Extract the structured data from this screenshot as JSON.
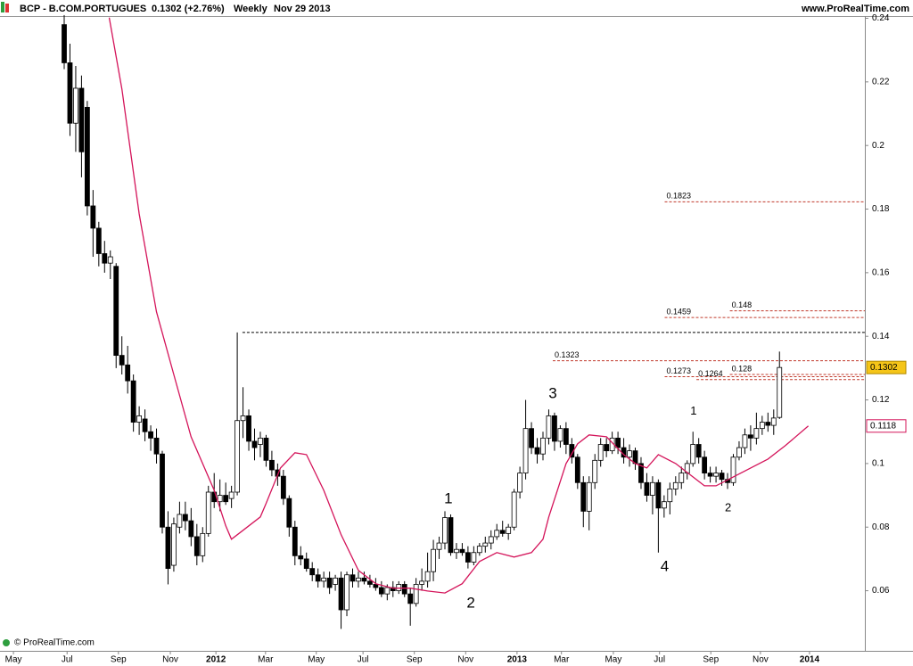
{
  "chart_data": {
    "type": "candlestick",
    "header": {
      "symbol": "BCP - B.COM.PORTUGUES",
      "quote": "0.1302 (+2.76%)",
      "period": "Weekly",
      "date": "Nov 29 2013",
      "site": "www.ProRealTime.com"
    },
    "footer": "© ProRealTime.com",
    "ylim": [
      0.0411,
      0.2407
    ],
    "yticks": [
      0.24,
      0.22,
      0.2,
      0.18,
      0.16,
      0.14,
      0.12,
      0.1,
      0.08,
      0.06
    ],
    "xlim": [
      -11.13,
      138.8
    ],
    "xticks": [
      {
        "value": -8.8,
        "label": "May"
      },
      {
        "value": 0.5,
        "label": "Jul"
      },
      {
        "value": 9.4,
        "label": "Sep"
      },
      {
        "value": 18.4,
        "label": "Nov"
      },
      {
        "value": 26.3,
        "label": "2012"
      },
      {
        "value": 34.9,
        "label": "Mar"
      },
      {
        "value": 43.7,
        "label": "May"
      },
      {
        "value": 51.8,
        "label": "Jul"
      },
      {
        "value": 60.7,
        "label": "Sep"
      },
      {
        "value": 69.6,
        "label": "Nov"
      },
      {
        "value": 78.5,
        "label": "2013"
      },
      {
        "value": 86.2,
        "label": "Mar"
      },
      {
        "value": 95.2,
        "label": "May"
      },
      {
        "value": 103.2,
        "label": "Jul"
      },
      {
        "value": 112.1,
        "label": "Sep"
      },
      {
        "value": 120.7,
        "label": "Nov"
      },
      {
        "value": 129.2,
        "label": "2014"
      }
    ],
    "up_color": "#ffffff",
    "down_color": "#000000",
    "ohlc": [
      [
        0.238,
        0.241,
        0.224,
        0.226
      ],
      [
        0.226,
        0.232,
        0.203,
        0.207
      ],
      [
        0.207,
        0.225,
        0.198,
        0.218
      ],
      [
        0.218,
        0.222,
        0.19,
        0.198
      ],
      [
        0.212,
        0.214,
        0.178,
        0.181
      ],
      [
        0.181,
        0.186,
        0.165,
        0.174
      ],
      [
        0.174,
        0.176,
        0.162,
        0.166
      ],
      [
        0.166,
        0.17,
        0.16,
        0.163
      ],
      [
        0.163,
        0.167,
        0.158,
        0.165
      ],
      [
        0.162,
        0.163,
        0.13,
        0.134
      ],
      [
        0.134,
        0.14,
        0.128,
        0.131
      ],
      [
        0.131,
        0.137,
        0.122,
        0.126
      ],
      [
        0.126,
        0.128,
        0.11,
        0.113
      ],
      [
        0.113,
        0.118,
        0.109,
        0.115
      ],
      [
        0.114,
        0.117,
        0.107,
        0.11
      ],
      [
        0.11,
        0.112,
        0.104,
        0.108
      ],
      [
        0.108,
        0.111,
        0.1,
        0.103
      ],
      [
        0.103,
        0.104,
        0.078,
        0.08
      ],
      [
        0.08,
        0.085,
        0.062,
        0.067
      ],
      [
        0.068,
        0.083,
        0.066,
        0.081
      ],
      [
        0.08,
        0.088,
        0.078,
        0.084
      ],
      [
        0.084,
        0.088,
        0.079,
        0.082
      ],
      [
        0.082,
        0.086,
        0.074,
        0.077
      ],
      [
        0.077,
        0.081,
        0.068,
        0.071
      ],
      [
        0.071,
        0.08,
        0.069,
        0.078
      ],
      [
        0.078,
        0.093,
        0.077,
        0.091
      ],
      [
        0.091,
        0.097,
        0.086,
        0.088
      ],
      [
        0.088,
        0.095,
        0.085,
        0.09
      ],
      [
        0.09,
        0.094,
        0.087,
        0.088
      ],
      [
        0.089,
        0.093,
        0.086,
        0.091
      ],
      [
        0.091,
        0.1412,
        0.09,
        0.1135
      ],
      [
        0.1135,
        0.124,
        0.108,
        0.115
      ],
      [
        0.115,
        0.117,
        0.104,
        0.107
      ],
      [
        0.107,
        0.111,
        0.101,
        0.105
      ],
      [
        0.106,
        0.11,
        0.102,
        0.108
      ],
      [
        0.108,
        0.109,
        0.099,
        0.101
      ],
      [
        0.101,
        0.104,
        0.096,
        0.098
      ],
      [
        0.098,
        0.1,
        0.093,
        0.096
      ],
      [
        0.096,
        0.098,
        0.087,
        0.089
      ],
      [
        0.089,
        0.09,
        0.077,
        0.08
      ],
      [
        0.08,
        0.082,
        0.068,
        0.071
      ],
      [
        0.071,
        0.074,
        0.068,
        0.07
      ],
      [
        0.07,
        0.072,
        0.066,
        0.067
      ],
      [
        0.067,
        0.069,
        0.063,
        0.065
      ],
      [
        0.065,
        0.067,
        0.061,
        0.063
      ],
      [
        0.063,
        0.066,
        0.061,
        0.064
      ],
      [
        0.064,
        0.066,
        0.059,
        0.061
      ],
      [
        0.062,
        0.065,
        0.06,
        0.064
      ],
      [
        0.064,
        0.066,
        0.048,
        0.054
      ],
      [
        0.054,
        0.066,
        0.052,
        0.065
      ],
      [
        0.065,
        0.067,
        0.061,
        0.063
      ],
      [
        0.063,
        0.066,
        0.061,
        0.064
      ],
      [
        0.064,
        0.066,
        0.062,
        0.063
      ],
      [
        0.063,
        0.065,
        0.061,
        0.062
      ],
      [
        0.062,
        0.064,
        0.06,
        0.061
      ],
      [
        0.061,
        0.063,
        0.058,
        0.059
      ],
      [
        0.059,
        0.062,
        0.057,
        0.061
      ],
      [
        0.061,
        0.063,
        0.058,
        0.06
      ],
      [
        0.06,
        0.063,
        0.059,
        0.062
      ],
      [
        0.062,
        0.063,
        0.058,
        0.059
      ],
      [
        0.059,
        0.061,
        0.049,
        0.056
      ],
      [
        0.056,
        0.064,
        0.055,
        0.062
      ],
      [
        0.062,
        0.067,
        0.06,
        0.063
      ],
      [
        0.063,
        0.072,
        0.061,
        0.066
      ],
      [
        0.066,
        0.076,
        0.063,
        0.073
      ],
      [
        0.073,
        0.077,
        0.07,
        0.075
      ],
      [
        0.075,
        0.085,
        0.073,
        0.083
      ],
      [
        0.083,
        0.084,
        0.071,
        0.072
      ],
      [
        0.072,
        0.075,
        0.07,
        0.073
      ],
      [
        0.073,
        0.075,
        0.071,
        0.072
      ],
      [
        0.072,
        0.074,
        0.067,
        0.069
      ],
      [
        0.069,
        0.074,
        0.068,
        0.072
      ],
      [
        0.072,
        0.075,
        0.071,
        0.074
      ],
      [
        0.074,
        0.077,
        0.072,
        0.075
      ],
      [
        0.075,
        0.079,
        0.073,
        0.077
      ],
      [
        0.077,
        0.081,
        0.076,
        0.079
      ],
      [
        0.079,
        0.082,
        0.077,
        0.078
      ],
      [
        0.078,
        0.081,
        0.076,
        0.08
      ],
      [
        0.08,
        0.092,
        0.079,
        0.091
      ],
      [
        0.091,
        0.099,
        0.089,
        0.097
      ],
      [
        0.097,
        0.12,
        0.095,
        0.111
      ],
      [
        0.111,
        0.113,
        0.103,
        0.105
      ],
      [
        0.105,
        0.108,
        0.1,
        0.103
      ],
      [
        0.103,
        0.11,
        0.101,
        0.108
      ],
      [
        0.108,
        0.117,
        0.106,
        0.115
      ],
      [
        0.115,
        0.116,
        0.104,
        0.107
      ],
      [
        0.107,
        0.112,
        0.105,
        0.111
      ],
      [
        0.111,
        0.113,
        0.103,
        0.106
      ],
      [
        0.106,
        0.108,
        0.1,
        0.102
      ],
      [
        0.102,
        0.103,
        0.092,
        0.094
      ],
      [
        0.094,
        0.096,
        0.08,
        0.085
      ],
      [
        0.085,
        0.096,
        0.079,
        0.094
      ],
      [
        0.094,
        0.103,
        0.092,
        0.101
      ],
      [
        0.101,
        0.108,
        0.099,
        0.106
      ],
      [
        0.106,
        0.108,
        0.102,
        0.104
      ],
      [
        0.104,
        0.11,
        0.103,
        0.108
      ],
      [
        0.108,
        0.11,
        0.103,
        0.105
      ],
      [
        0.105,
        0.108,
        0.1,
        0.102
      ],
      [
        0.102,
        0.106,
        0.099,
        0.104
      ],
      [
        0.104,
        0.105,
        0.098,
        0.1
      ],
      [
        0.1,
        0.102,
        0.092,
        0.094
      ],
      [
        0.094,
        0.097,
        0.088,
        0.09
      ],
      [
        0.09,
        0.096,
        0.084,
        0.094
      ],
      [
        0.094,
        0.095,
        0.072,
        0.086
      ],
      [
        0.086,
        0.09,
        0.083,
        0.088
      ],
      [
        0.088,
        0.094,
        0.084,
        0.092
      ],
      [
        0.092,
        0.096,
        0.09,
        0.094
      ],
      [
        0.094,
        0.099,
        0.092,
        0.097
      ],
      [
        0.097,
        0.101,
        0.095,
        0.1
      ],
      [
        0.1,
        0.11,
        0.099,
        0.106
      ],
      [
        0.106,
        0.108,
        0.1,
        0.102
      ],
      [
        0.102,
        0.104,
        0.095,
        0.097
      ],
      [
        0.097,
        0.099,
        0.094,
        0.096
      ],
      [
        0.096,
        0.099,
        0.094,
        0.097
      ],
      [
        0.097,
        0.098,
        0.093,
        0.095
      ],
      [
        0.095,
        0.097,
        0.092,
        0.094
      ],
      [
        0.094,
        0.103,
        0.093,
        0.102
      ],
      [
        0.102,
        0.107,
        0.101,
        0.105
      ],
      [
        0.105,
        0.111,
        0.103,
        0.109
      ],
      [
        0.109,
        0.112,
        0.104,
        0.108
      ],
      [
        0.108,
        0.116,
        0.106,
        0.111
      ],
      [
        0.111,
        0.115,
        0.109,
        0.113
      ],
      [
        0.113,
        0.116,
        0.11,
        0.112
      ],
      [
        0.112,
        0.117,
        0.109,
        0.1143
      ],
      [
        0.1145,
        0.1352,
        0.114,
        0.1302
      ]
    ],
    "moving_average": {
      "color": "#d4145a",
      "x": [
        7.8,
        10,
        13,
        16,
        19,
        22,
        26,
        28,
        29,
        31,
        34,
        35,
        37.5,
        40,
        42,
        45,
        48,
        51,
        54,
        57,
        60,
        63,
        66,
        69,
        72,
        75,
        78,
        81,
        83,
        84,
        87,
        89,
        91,
        94,
        97,
        99,
        101,
        103,
        106,
        108,
        111,
        113,
        116,
        119,
        122,
        125,
        129
      ],
      "values": [
        0.2402,
        0.2178,
        0.1785,
        0.1477,
        0.128,
        0.1084,
        0.0916,
        0.0804,
        0.0762,
        0.079,
        0.0832,
        0.0874,
        0.0986,
        0.1034,
        0.1028,
        0.0916,
        0.0776,
        0.0664,
        0.0622,
        0.0608,
        0.0608,
        0.0599,
        0.0593,
        0.0622,
        0.0692,
        0.072,
        0.0706,
        0.072,
        0.0762,
        0.0832,
        0.1,
        0.1062,
        0.109,
        0.1084,
        0.1028,
        0.1,
        0.0986,
        0.1028,
        0.1,
        0.0972,
        0.093,
        0.093,
        0.0958,
        0.0986,
        0.1014,
        0.1056,
        0.1118
      ]
    },
    "levels": [
      {
        "value": 0.1823,
        "from": 104.1,
        "color": "#c0392b",
        "label_color": "#2e6b2e"
      },
      {
        "value": 0.148,
        "from": 115.4,
        "color": "#c0392b",
        "label_color": "#2e6b2e"
      },
      {
        "value": 0.1459,
        "from": 104.1,
        "color": "#c0392b",
        "label_color": "#2e6b2e"
      },
      {
        "value": 0.1412,
        "from": 30.9,
        "color": "#000000"
      },
      {
        "value": 0.1323,
        "from": 84.7,
        "color": "#c0392b",
        "label_color": "#2e6b2e"
      },
      {
        "value": 0.128,
        "from": 115.4,
        "color": "#c0392b",
        "label_color": "#2e6b2e"
      },
      {
        "value": 0.1273,
        "from": 104.1,
        "color": "#c0392b",
        "label_color": "#2e6b2e"
      },
      {
        "value": 0.1264,
        "from": 109.6,
        "color": "#c0392b",
        "label_color": "#2e6b2e"
      }
    ],
    "annotations": [
      {
        "text": "1",
        "x": 66.6,
        "y": 0.0888,
        "color": "#e0302a"
      },
      {
        "text": "2",
        "x": 70.5,
        "y": 0.056,
        "color": "#e0302a"
      },
      {
        "text": "3",
        "x": 84.7,
        "y": 0.1219,
        "color": "#e0302a"
      },
      {
        "text": "4",
        "x": 104.1,
        "y": 0.0675,
        "color": "#e0302a"
      },
      {
        "text": "1",
        "x": 109.1,
        "y": 0.1163,
        "color": "#000000"
      },
      {
        "text": "2",
        "x": 115.1,
        "y": 0.086,
        "color": "#000000"
      }
    ],
    "price_tags": [
      {
        "value": 0.1302,
        "fill": "#f5c518",
        "stroke": "#b08900",
        "text_color": "#000000"
      },
      {
        "value": 0.1118,
        "fill": "#ffffff",
        "stroke": "#d4145a",
        "text_color": "#d4145a"
      }
    ]
  }
}
